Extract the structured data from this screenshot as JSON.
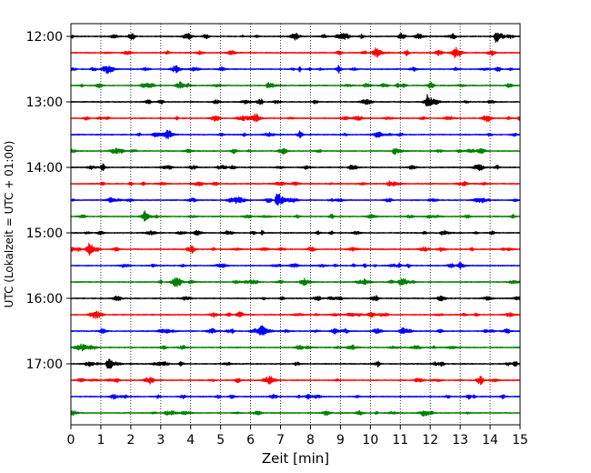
{
  "chart_data": {
    "type": "line",
    "subtype": "helicorder",
    "xlabel": "Zeit  [min]",
    "ylabel": "UTC (Lokalzeit = UTC + 01:00)",
    "xlim": [
      0,
      15
    ],
    "x_ticks": [
      0,
      1,
      2,
      3,
      4,
      5,
      6,
      7,
      8,
      9,
      10,
      11,
      12,
      13,
      14,
      15
    ],
    "y_tick_labels": [
      "12:00",
      "13:00",
      "14:00",
      "15:00",
      "16:00",
      "17:00"
    ],
    "row_interval_minutes": 15,
    "rows_per_hour": 4,
    "color_cycle": [
      "#000000",
      "#ff0000",
      "#0000ff",
      "#008000"
    ],
    "grid": "vertical dotted lines at each minute",
    "legend": "none",
    "rows": [
      {
        "time": "12:00",
        "color": "#000000",
        "events": [
          {
            "t": 14.2,
            "amp": 1.0
          }
        ]
      },
      {
        "time": "12:15",
        "color": "#ff0000",
        "events": [
          {
            "t": 10.2,
            "amp": 0.65
          }
        ]
      },
      {
        "time": "12:30",
        "color": "#0000ff",
        "events": []
      },
      {
        "time": "12:45",
        "color": "#008000",
        "events": [
          {
            "t": 6.6,
            "amp": 0.6
          }
        ]
      },
      {
        "time": "13:00",
        "color": "#000000",
        "events": [
          {
            "t": 11.9,
            "amp": 0.9
          }
        ]
      },
      {
        "time": "13:15",
        "color": "#ff0000",
        "events": [
          {
            "t": 15.0,
            "amp": 0.45
          }
        ]
      },
      {
        "time": "13:30",
        "color": "#0000ff",
        "events": []
      },
      {
        "time": "13:45",
        "color": "#008000",
        "events": [
          {
            "t": 10.8,
            "amp": 0.5
          }
        ]
      },
      {
        "time": "14:00",
        "color": "#000000",
        "events": []
      },
      {
        "time": "14:15",
        "color": "#ff0000",
        "events": []
      },
      {
        "time": "14:30",
        "color": "#0000ff",
        "events": [
          {
            "t": 6.9,
            "amp": 1.3
          }
        ]
      },
      {
        "time": "14:45",
        "color": "#008000",
        "events": []
      },
      {
        "time": "15:00",
        "color": "#000000",
        "events": [
          {
            "t": 12.4,
            "amp": 0.4
          }
        ]
      },
      {
        "time": "15:15",
        "color": "#ff0000",
        "events": []
      },
      {
        "time": "15:30",
        "color": "#0000ff",
        "events": []
      },
      {
        "time": "15:45",
        "color": "#008000",
        "events": [
          {
            "t": 7.7,
            "amp": 0.4
          }
        ]
      },
      {
        "time": "16:00",
        "color": "#000000",
        "events": []
      },
      {
        "time": "16:15",
        "color": "#ff0000",
        "events": []
      },
      {
        "time": "16:30",
        "color": "#0000ff",
        "events": [
          {
            "t": 6.35,
            "amp": 1.0
          }
        ]
      },
      {
        "time": "16:45",
        "color": "#008000",
        "events": []
      },
      {
        "time": "17:00",
        "color": "#000000",
        "events": [
          {
            "t": 1.25,
            "amp": 1.1
          }
        ]
      },
      {
        "time": "17:15",
        "color": "#ff0000",
        "events": []
      },
      {
        "time": "17:30",
        "color": "#0000ff",
        "events": []
      },
      {
        "time": "17:45",
        "color": "#008000",
        "events": []
      }
    ]
  }
}
